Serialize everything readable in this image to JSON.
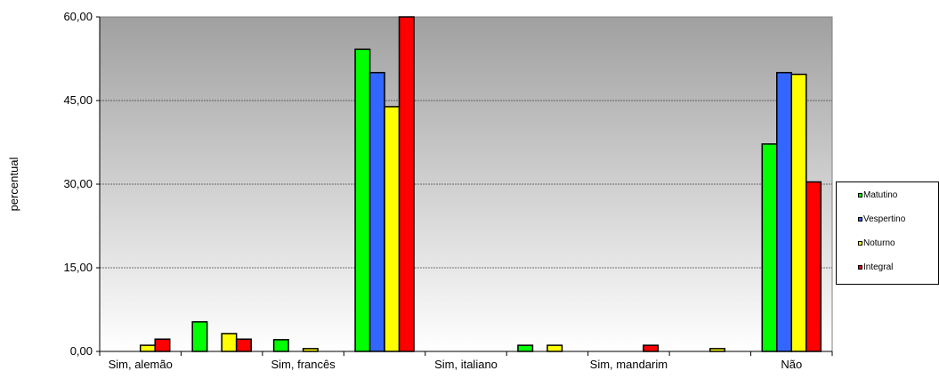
{
  "chart_data": {
    "type": "bar",
    "ylabel": "percentual",
    "ylim": [
      0,
      60
    ],
    "yticks": [
      0,
      15,
      30,
      45,
      60
    ],
    "ytick_labels": [
      "0,00",
      "15,00",
      "30,00",
      "45,00",
      "60,00"
    ],
    "categories": [
      "Sim, alemão",
      "",
      "Sim, francês",
      "",
      "Sim, italiano",
      "",
      "Sim, mandarim",
      "",
      "Não"
    ],
    "series": [
      {
        "name": "Matutino",
        "color": "#00ff00",
        "values": [
          0,
          5.3,
          2.1,
          54.2,
          0,
          1.1,
          0,
          0,
          37.2
        ]
      },
      {
        "name": "Vespertino",
        "color": "#3366ff",
        "values": [
          0,
          0,
          0,
          50.0,
          0,
          0,
          0,
          0,
          50.0
        ]
      },
      {
        "name": "Noturno",
        "color": "#ffff00",
        "values": [
          1.1,
          3.2,
          0.5,
          43.9,
          0,
          1.1,
          0,
          0.5,
          49.7
        ]
      },
      {
        "name": "Integral",
        "color": "#ff0000",
        "values": [
          2.2,
          2.2,
          0,
          60.0,
          0,
          0,
          1.1,
          0,
          30.4
        ]
      }
    ],
    "grid": "horizontal",
    "legend_position": "right"
  }
}
